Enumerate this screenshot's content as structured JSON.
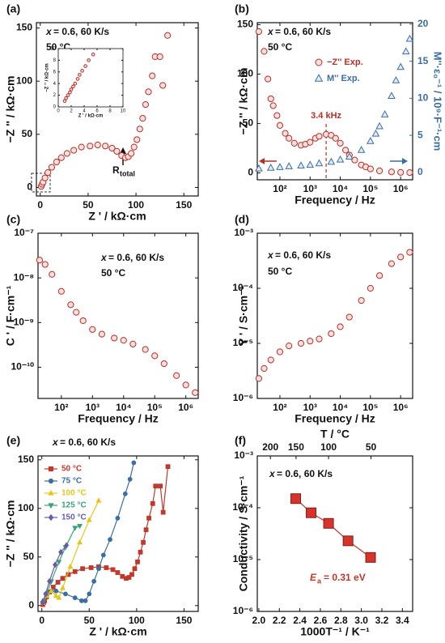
{
  "chart_data": [
    {
      "type": "scatter",
      "panel": "(a)",
      "xlabel": "Z ' / kΩ·cm",
      "ylabel": "−Z '' / kΩ·cm",
      "xlim": [
        -4,
        165
      ],
      "ylim": [
        -8,
        155
      ],
      "xticks": [
        0,
        50,
        100,
        150
      ],
      "yticks": [
        0,
        50,
        100,
        150
      ],
      "annotations": [
        "x",
        "= 0.6, 60 K/s",
        "50 °C",
        "R",
        "total"
      ],
      "series": [
        {
          "name": "−Z'' Exp.",
          "marker": "circle",
          "color": "#b5302a",
          "fill": "#f9e0dc",
          "x": [
            1,
            2,
            3,
            5,
            8,
            12,
            17,
            22,
            28,
            35,
            43,
            52,
            60,
            68,
            75,
            80,
            85,
            89,
            92,
            95,
            98,
            101,
            104,
            107,
            110,
            113,
            117,
            120,
            125,
            128,
            133
          ],
          "values": [
            1,
            3,
            5,
            9,
            14,
            19,
            24,
            28,
            32,
            35,
            38,
            39,
            40,
            39,
            37,
            34,
            30,
            28,
            29,
            32,
            38,
            45,
            55,
            65,
            78,
            90,
            105,
            123,
            123,
            96,
            143
          ]
        }
      ],
      "inset": {
        "type": "scatter",
        "xlabel": "Z ' / kΩ·cm",
        "ylabel": "−Z '' / kΩ·cm",
        "xlim": [
          0,
          10
        ],
        "ylim": [
          0,
          10
        ],
        "xticks": [
          0,
          2,
          4,
          6,
          8,
          10
        ],
        "yticks": [
          0,
          2,
          4,
          6,
          8,
          10
        ],
        "series": [
          {
            "name": "−Z'' Exp.",
            "marker": "circle",
            "color": "#b5302a",
            "fill": "#f9e0dc",
            "x": [
              1,
              1.2,
              1.5,
              1.8,
              2,
              2.3,
              2.6,
              3,
              3.3,
              3.7,
              4.2,
              4.7,
              5.4
            ],
            "values": [
              1,
              1.5,
              2,
              2.5,
              3,
              3.5,
              4,
              4.8,
              5.5,
              6.2,
              7,
              8,
              9
            ]
          }
        ]
      }
    },
    {
      "type": "scatter",
      "panel": "(b)",
      "xlabel": "Frequency / Hz",
      "ylabel": "−Z '' / kΩ·cm",
      "y2label": "M''·ε₀⁻¹ / 10⁹·F⁻¹·cm",
      "y2color": "#3a6ea5",
      "xlog": true,
      "xlim": [
        17.8,
        2500000
      ],
      "ylim": [
        -7,
        152
      ],
      "y2lim": [
        -1,
        20.2
      ],
      "xticks": [
        {
          "value": 100,
          "label": "10²"
        },
        {
          "value": 1000,
          "label": "10³"
        },
        {
          "value": 10000,
          "label": "10⁴"
        },
        {
          "value": 100000,
          "label": "10⁵"
        },
        {
          "value": 1000000,
          "label": "10⁶"
        }
      ],
      "yticks": [
        0,
        50,
        100,
        150
      ],
      "y2ticks": [
        0,
        5,
        10,
        15,
        20
      ],
      "annotations": [
        "x",
        "= 0.6, 60 K/s",
        "50 °C"
      ],
      "vline": {
        "x": 3400,
        "label": "3.4 kHz",
        "color": "#b5302a"
      },
      "legend": true,
      "series": [
        {
          "name": "−Z'' Exp.",
          "marker": "circle",
          "color": "#b5302a",
          "fill": "#f9e0dc",
          "x": [
            20,
            30,
            40,
            50,
            60,
            80,
            100,
            150,
            200,
            300,
            500,
            700,
            1000,
            1500,
            2000,
            3400,
            5000,
            7000,
            10000,
            15000,
            20000,
            30000,
            50000,
            70000,
            100000,
            200000,
            500000,
            1000000,
            2000000
          ],
          "values": [
            143,
            123,
            95,
            75,
            68,
            58,
            48,
            40,
            35,
            30,
            28,
            29,
            31,
            35,
            37,
            39,
            38,
            35,
            30,
            23,
            18,
            13,
            8,
            6,
            4,
            2,
            1,
            0.5,
            0.3
          ]
        },
        {
          "name": "M'' Exp.",
          "marker": "triangle",
          "color": "#3a6ea5",
          "fill": "#e3edf7",
          "axis": "y2",
          "x": [
            20,
            50,
            100,
            200,
            500,
            1000,
            2000,
            5000,
            10000,
            20000,
            50000,
            100000,
            150000,
            200000,
            300000,
            500000,
            700000,
            1000000,
            1500000,
            2000000
          ],
          "values": [
            0.5,
            0.6,
            0.7,
            0.8,
            0.9,
            1.0,
            1.2,
            1.4,
            1.7,
            2.1,
            3.0,
            4.2,
            5.2,
            6.2,
            7.8,
            10.3,
            12.4,
            14.2,
            16.3,
            18.0
          ]
        }
      ]
    },
    {
      "type": "scatter",
      "panel": "(c)",
      "xlabel": "Frequency / Hz",
      "ylabel": "C ' / F·cm⁻¹",
      "xlog": true,
      "ylog": true,
      "xlim": [
        17.8,
        2500000
      ],
      "ylim": [
        2e-11,
        1e-07
      ],
      "xticks": [
        {
          "value": 100,
          "label": "10²"
        },
        {
          "value": 1000,
          "label": "10³"
        },
        {
          "value": 10000,
          "label": "10⁴"
        },
        {
          "value": 100000,
          "label": "10⁵"
        },
        {
          "value": 1000000,
          "label": "10⁶"
        }
      ],
      "yticks": [
        {
          "value": 1e-10,
          "label": "10⁻¹⁰"
        },
        {
          "value": 1e-09,
          "label": "10⁻⁹"
        },
        {
          "value": 1e-08,
          "label": "10⁻⁸"
        },
        {
          "value": 1e-07,
          "label": "10⁻⁷"
        }
      ],
      "annotations": [
        "x",
        "= 0.6, 60 K/s",
        "50 °C"
      ],
      "series": [
        {
          "name": "C'",
          "marker": "circle",
          "color": "#b5302a",
          "fill": "#f9e0dc",
          "x": [
            20,
            30,
            50,
            100,
            200,
            300,
            500,
            1000,
            2000,
            5000,
            10000,
            20000,
            50000,
            100000,
            200000,
            500000,
            1000000,
            2000000
          ],
          "values": [
            2.5e-08,
            2e-08,
            1.2e-08,
            5e-09,
            2.5e-09,
            1.7e-09,
            1.1e-09,
            7e-10,
            5.5e-10,
            4.5e-10,
            4e-10,
            3.3e-10,
            2.5e-10,
            1.8e-10,
            1.2e-10,
            6.5e-11,
            4e-11,
            2.7e-11
          ]
        }
      ]
    },
    {
      "type": "scatter",
      "panel": "(d)",
      "xlabel": "Frequency / Hz",
      "ylabel": "Y ' / S·cm⁻¹",
      "xlog": true,
      "ylog": true,
      "xlim": [
        17.8,
        2500000
      ],
      "ylim": [
        1e-06,
        0.001
      ],
      "xticks": [
        {
          "value": 100,
          "label": "10²"
        },
        {
          "value": 1000,
          "label": "10³"
        },
        {
          "value": 10000,
          "label": "10⁴"
        },
        {
          "value": 100000,
          "label": "10⁵"
        },
        {
          "value": 1000000,
          "label": "10⁶"
        }
      ],
      "yticks": [
        {
          "value": 1e-06,
          "label": "10⁻⁶"
        },
        {
          "value": 1e-05,
          "label": "10⁻⁵"
        },
        {
          "value": 0.0001,
          "label": "10⁻⁴"
        },
        {
          "value": 0.001,
          "label": "10⁻³"
        }
      ],
      "annotations": [
        "x",
        "= 0.6, 60 K/s",
        "50 °C"
      ],
      "series": [
        {
          "name": "Y'",
          "marker": "circle",
          "color": "#b5302a",
          "fill": "#f9e0dc",
          "x": [
            20,
            30,
            50,
            100,
            200,
            500,
            1000,
            2000,
            5000,
            10000,
            20000,
            50000,
            100000,
            200000,
            500000,
            1000000,
            2000000
          ],
          "values": [
            2.3e-06,
            3.5e-06,
            5e-06,
            7e-06,
            9e-06,
            1e-05,
            1.1e-05,
            1.2e-05,
            1.5e-05,
            2e-05,
            3e-05,
            6e-05,
            0.0001,
            0.00017,
            0.00028,
            0.00037,
            0.00045
          ]
        }
      ]
    },
    {
      "type": "line",
      "panel": "(e)",
      "xlabel": "Z ' / kΩ·cm",
      "ylabel": "−Z '' / kΩ·cm",
      "xlim": [
        -4,
        165
      ],
      "ylim": [
        -6,
        154
      ],
      "xticks": [
        0,
        50,
        100,
        150
      ],
      "yticks": [
        0,
        50,
        100,
        150
      ],
      "annotations": [
        "x",
        "= 0.6, 60 K/s"
      ],
      "legend": true,
      "series": [
        {
          "name": "50 °C",
          "marker": "square",
          "color": "#c0392b",
          "fill": "#c0392b",
          "x": [
            1,
            2,
            3,
            5,
            8,
            12,
            17,
            22,
            28,
            35,
            43,
            52,
            60,
            68,
            75,
            80,
            85,
            89,
            92,
            95,
            98,
            101,
            104,
            107,
            110,
            113,
            117,
            120,
            125,
            128,
            133
          ],
          "values": [
            1,
            3,
            5,
            9,
            14,
            19,
            24,
            28,
            32,
            35,
            38,
            39,
            40,
            39,
            37,
            34,
            30,
            28,
            29,
            32,
            38,
            45,
            55,
            65,
            78,
            90,
            105,
            123,
            123,
            96,
            143
          ]
        },
        {
          "name": "75 °C",
          "marker": "circle",
          "color": "#3a6ea5",
          "fill": "#3a6ea5",
          "x": [
            2,
            5,
            10,
            15,
            25,
            35,
            42,
            46,
            50,
            55,
            60,
            65,
            72,
            80,
            88,
            93,
            97
          ],
          "values": [
            5,
            12,
            15,
            15,
            12,
            8,
            5,
            5,
            12,
            25,
            38,
            52,
            68,
            90,
            115,
            130,
            147
          ]
        },
        {
          "name": "100 °C",
          "marker": "triangle",
          "color": "#e6c619",
          "fill": "#e6c619",
          "x": [
            1,
            5,
            10,
            15,
            18,
            22,
            30,
            40,
            50,
            60
          ],
          "values": [
            3,
            10,
            15,
            10,
            8,
            18,
            40,
            65,
            88,
            108
          ]
        },
        {
          "name": "125 °C",
          "marker": "triangle-down",
          "color": "#3aa37a",
          "fill": "#3aa37a",
          "x": [
            1,
            5,
            10,
            18,
            25,
            35,
            40
          ],
          "values": [
            3,
            12,
            25,
            45,
            60,
            80,
            82
          ]
        },
        {
          "name": "150 °C",
          "marker": "diamond",
          "color": "#6a5aa8",
          "fill": "#6a5aa8",
          "x": [
            1,
            4,
            8,
            14,
            20,
            26
          ],
          "values": [
            3,
            12,
            25,
            42,
            55,
            62
          ]
        }
      ]
    },
    {
      "type": "line",
      "panel": "(f)",
      "xlabel": "1000T⁻¹ / K⁻¹",
      "ylabel": "Conductivity / S·cm⁻¹",
      "x2label": "T / °C",
      "ylog": true,
      "xlim": [
        1.985,
        3.5
      ],
      "ylim": [
        1e-06,
        0.001
      ],
      "xticks": [
        {
          "value": 2.0,
          "label": "2.0"
        },
        2.2,
        2.4,
        2.6,
        2.8,
        {
          "value": 3.0,
          "label": "3.0"
        },
        3.2,
        3.4
      ],
      "x2ticks": [
        {
          "value": 2.113,
          "label": "200"
        },
        {
          "value": 2.363,
          "label": "150"
        },
        {
          "value": 2.68,
          "label": "100"
        },
        {
          "value": 3.094,
          "label": "50"
        }
      ],
      "yticks": [
        {
          "value": 1e-06,
          "label": "10⁻⁶"
        },
        {
          "value": 1e-05,
          "label": "10⁻⁵"
        },
        {
          "value": 0.0001,
          "label": "10⁻⁴"
        },
        {
          "value": 0.001,
          "label": "10⁻³"
        }
      ],
      "annotations": [
        "x",
        "= 0.6, 60 K/s",
        "E",
        "a",
        "= 0.31 eV"
      ],
      "series": [
        {
          "name": "Conductivity",
          "marker": "big-square",
          "color": "#c0392b",
          "fill": "#d8332a",
          "x": [
            2.36,
            2.51,
            2.68,
            2.87,
            3.09
          ],
          "values": [
            0.00015,
            8e-05,
            5e-05,
            2.3e-05,
            1.1e-05
          ]
        }
      ]
    }
  ]
}
